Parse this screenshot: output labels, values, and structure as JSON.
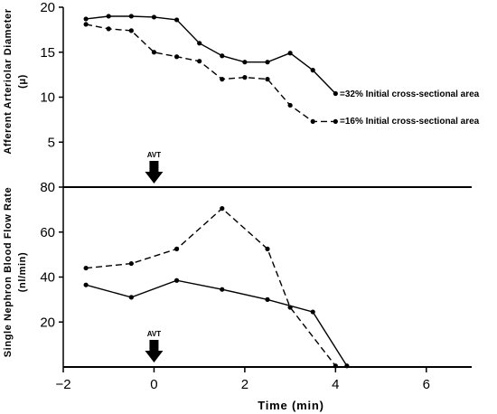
{
  "chart_data": [
    {
      "type": "line",
      "ylabel_line1": "Afferent Arteriolar Diameter",
      "ylabel_line2": "(μ)",
      "ylim": [
        0,
        20
      ],
      "yticks": [
        "5",
        "10",
        "15",
        "20"
      ],
      "ytick_values": [
        5,
        10,
        15,
        20
      ],
      "xlim": [
        -2,
        7
      ],
      "series": [
        {
          "style": "solid",
          "x": [
            -1.5,
            -1.0,
            -0.5,
            0.0,
            0.5,
            1.0,
            1.5,
            2.0,
            2.5,
            3.0,
            3.5,
            4.0
          ],
          "y": [
            18.7,
            19.0,
            19.0,
            18.9,
            18.6,
            16.0,
            14.6,
            13.9,
            13.9,
            14.9,
            13.0,
            10.4
          ]
        },
        {
          "style": "dashed",
          "x": [
            -1.5,
            -1.0,
            -0.5,
            0.0,
            0.5,
            1.0,
            1.5,
            2.0,
            2.5,
            3.0,
            3.5,
            4.0
          ],
          "y": [
            18.1,
            17.6,
            17.4,
            15.0,
            14.5,
            14.0,
            12.0,
            12.2,
            12.0,
            9.1,
            7.3,
            7.3
          ]
        }
      ],
      "annotations": [
        "=32% Initial cross-sectional area",
        "=16% Initial cross-sectional area"
      ],
      "marker_label": "AVT",
      "marker_x": 0
    },
    {
      "type": "line",
      "ylabel_line1": "Single Nephron Blood Flow Rate",
      "ylabel_line2": "(nl/min)",
      "ylim": [
        0,
        80
      ],
      "yticks": [
        "20",
        "40",
        "60",
        "80"
      ],
      "ytick_values": [
        20,
        40,
        60,
        80
      ],
      "xlabel": "Time  (min)",
      "xlim": [
        -2,
        7
      ],
      "xticks": [
        "−2",
        "0",
        "2",
        "4",
        "6"
      ],
      "xtick_values": [
        -2,
        0,
        2,
        4,
        6
      ],
      "series": [
        {
          "style": "solid",
          "x": [
            -1.5,
            -0.5,
            0.5,
            1.5,
            2.5,
            3.5,
            4.25
          ],
          "y": [
            36.5,
            31.0,
            38.5,
            34.5,
            30.0,
            24.5,
            0.5
          ]
        },
        {
          "style": "dashed",
          "x": [
            -1.5,
            -0.5,
            0.5,
            1.5,
            2.5,
            3.0,
            4.0
          ],
          "y": [
            44.0,
            46.0,
            52.5,
            70.5,
            52.5,
            26.5,
            0.5
          ]
        }
      ],
      "marker_label": "AVT",
      "marker_x": 0
    }
  ]
}
